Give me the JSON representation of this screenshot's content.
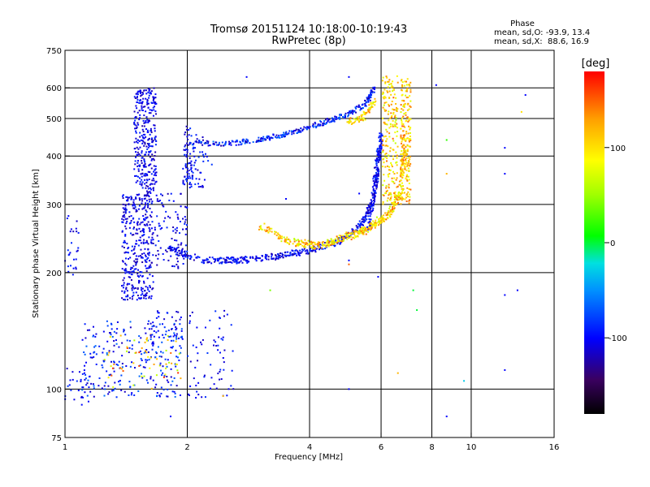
{
  "chart_data": {
    "type": "scatter",
    "title": "Tromsø 20151124 10:18:00-10:19:43",
    "subtitle": "RwPretec (8p)",
    "xlabel": "Frequency [MHz]",
    "ylabel": "Stationary phase Virtual Height [km]",
    "x_scale": "log",
    "y_scale": "log",
    "xlim": [
      1,
      16
    ],
    "ylim": [
      75,
      750
    ],
    "x_ticks": [
      1,
      2,
      4,
      6,
      8,
      10,
      16
    ],
    "y_ticks": [
      75,
      100,
      200,
      300,
      400,
      500,
      600,
      750
    ],
    "x_gridlines": [
      2,
      4,
      6,
      8,
      10
    ],
    "y_gridlines": [
      100,
      200,
      300,
      400,
      500,
      600
    ],
    "grid": true,
    "phase_box": {
      "title": "Phase",
      "line_o": "mean, sd,O: -93.9, 13.4",
      "line_x": "mean, sd,X:  88.6, 16.9"
    },
    "colorbar": {
      "label": "[deg]",
      "range": [
        -180,
        180
      ],
      "ticks": [
        100,
        0,
        -100
      ],
      "tick_labels": [
        "100",
        "0",
        "-100"
      ]
    },
    "clusters": [
      {
        "x": [
          1.0,
          1.08
        ],
        "y": [
          190,
          290
        ],
        "n": 25,
        "phase": [
          -120,
          -80
        ]
      },
      {
        "x": [
          1.0,
          1.15
        ],
        "y": [
          88,
          115
        ],
        "n": 25,
        "phase": [
          -120,
          -80
        ]
      },
      {
        "x": [
          1.1,
          1.95
        ],
        "y": [
          95,
          150
        ],
        "n": 260,
        "phase": [
          -120,
          -60
        ]
      },
      {
        "x": [
          1.25,
          1.95
        ],
        "y": [
          100,
          140
        ],
        "n": 60,
        "phase": [
          50,
          170
        ]
      },
      {
        "x": [
          1.6,
          1.95
        ],
        "y": [
          135,
          160
        ],
        "n": 40,
        "phase": [
          -120,
          -80
        ]
      },
      {
        "x": [
          1.38,
          1.65
        ],
        "y": [
          170,
          320
        ],
        "n": 380,
        "phase": [
          -125,
          -85
        ]
      },
      {
        "x": [
          1.48,
          1.68
        ],
        "y": [
          320,
          600
        ],
        "n": 320,
        "phase": [
          -125,
          -85
        ]
      },
      {
        "x": [
          1.65,
          2.0
        ],
        "y": [
          205,
          320
        ],
        "n": 100,
        "phase": [
          -125,
          -85
        ]
      },
      {
        "x": [
          1.95,
          2.05
        ],
        "y": [
          330,
          480
        ],
        "n": 50,
        "phase": [
          -120,
          -80
        ]
      },
      {
        "x": [
          2.0,
          2.6
        ],
        "y": [
          95,
          160
        ],
        "n": 70,
        "phase": [
          -120,
          -80
        ]
      },
      {
        "x": [
          2.0,
          2.2
        ],
        "y": [
          330,
          460
        ],
        "n": 40,
        "phase": [
          -120,
          -80
        ]
      },
      {
        "x": [
          2.0,
          2.3
        ],
        "y": [
          340,
          470
        ],
        "n": 20,
        "phase": [
          -120,
          -80
        ]
      }
    ],
    "curves": [
      {
        "x": [
          2.0,
          2.5,
          3.0,
          3.5,
          4.0,
          4.5,
          5.0,
          5.5,
          5.8
        ],
        "y": [
          435,
          430,
          440,
          455,
          475,
          495,
          515,
          545,
          600
        ],
        "n": 320,
        "phase": [
          -125,
          -60
        ],
        "spread": 0.02
      },
      {
        "x": [
          1.8,
          2.2,
          2.7,
          3.3,
          4.0,
          4.7,
          5.3,
          5.7,
          5.95
        ],
        "y": [
          230,
          215,
          215,
          220,
          228,
          240,
          262,
          300,
          420
        ],
        "n": 500,
        "phase": [
          -125,
          -80
        ],
        "spread": 0.025
      },
      {
        "x": [
          5.6,
          5.85,
          6.0
        ],
        "y": [
          260,
          350,
          460
        ],
        "n": 120,
        "phase": [
          -120,
          -80
        ],
        "spread": 0.02
      },
      {
        "x": [
          3.0,
          3.6,
          4.2,
          4.8,
          5.4,
          5.9,
          6.3,
          6.7,
          6.9
        ],
        "y": [
          265,
          240,
          235,
          245,
          255,
          270,
          285,
          320,
          420
        ],
        "n": 450,
        "phase": [
          60,
          150
        ],
        "spread": 0.03
      },
      {
        "x": [
          5.0,
          5.4,
          5.8
        ],
        "y": [
          490,
          500,
          560
        ],
        "n": 70,
        "phase": [
          60,
          150
        ],
        "spread": 0.025
      }
    ],
    "columns": [
      {
        "x": [
          6.05,
          6.6
        ],
        "y": [
          300,
          650
        ],
        "n": 200,
        "phase": [
          60,
          150
        ]
      },
      {
        "x": [
          6.7,
          7.1
        ],
        "y": [
          300,
          640
        ],
        "n": 200,
        "phase": [
          70,
          150
        ]
      }
    ],
    "scattered_points": [
      {
        "x": 1.82,
        "y": 85,
        "phase": -100
      },
      {
        "x": 2.1,
        "y": 95,
        "phase": -100
      },
      {
        "x": 2.45,
        "y": 96,
        "phase": 120
      },
      {
        "x": 2.8,
        "y": 640,
        "phase": -100
      },
      {
        "x": 3.5,
        "y": 310,
        "phase": -100
      },
      {
        "x": 3.2,
        "y": 180,
        "phase": 40
      },
      {
        "x": 5.0,
        "y": 210,
        "phase": 150
      },
      {
        "x": 5.0,
        "y": 215,
        "phase": -100
      },
      {
        "x": 5.0,
        "y": 100,
        "phase": -100
      },
      {
        "x": 5.0,
        "y": 640,
        "phase": -100
      },
      {
        "x": 5.9,
        "y": 195,
        "phase": -100
      },
      {
        "x": 5.3,
        "y": 320,
        "phase": -100
      },
      {
        "x": 6.6,
        "y": 110,
        "phase": 120
      },
      {
        "x": 7.2,
        "y": 180,
        "phase": 0
      },
      {
        "x": 7.35,
        "y": 160,
        "phase": 0
      },
      {
        "x": 8.2,
        "y": 610,
        "phase": -100
      },
      {
        "x": 8.7,
        "y": 440,
        "phase": 20
      },
      {
        "x": 8.7,
        "y": 360,
        "phase": 120
      },
      {
        "x": 8.7,
        "y": 85,
        "phase": -100
      },
      {
        "x": 9.6,
        "y": 105,
        "phase": -30
      },
      {
        "x": 12.1,
        "y": 420,
        "phase": -100
      },
      {
        "x": 12.1,
        "y": 360,
        "phase": -100
      },
      {
        "x": 12.1,
        "y": 175,
        "phase": -100
      },
      {
        "x": 12.1,
        "y": 112,
        "phase": -100
      },
      {
        "x": 13.3,
        "y": 520,
        "phase": 100
      },
      {
        "x": 13.6,
        "y": 575,
        "phase": -100
      },
      {
        "x": 13.0,
        "y": 180,
        "phase": -100
      },
      {
        "x": 1.05,
        "y": 205,
        "phase": -100
      },
      {
        "x": 1.02,
        "y": 280,
        "phase": -100
      }
    ]
  },
  "colors": {
    "background": "#ffffff",
    "axes": "#000000",
    "gridlines": "#000000"
  }
}
